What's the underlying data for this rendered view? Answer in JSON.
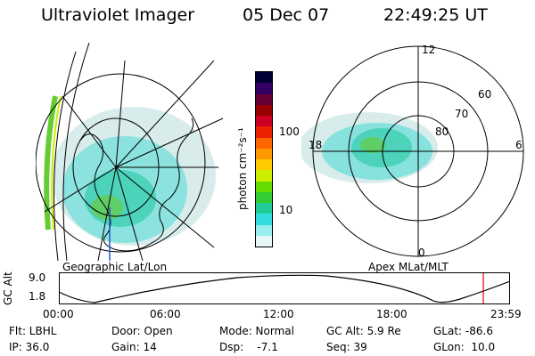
{
  "header": {
    "title": "Ultraviolet Imager",
    "date": "05 Dec 07",
    "time": "22:49:25 UT"
  },
  "colorbar": {
    "unit_label": "photon cm⁻²s⁻¹",
    "ticks": [
      "100",
      "10"
    ],
    "colors": [
      "#000033",
      "#330066",
      "#660033",
      "#990000",
      "#cc0022",
      "#ee2200",
      "#ff6600",
      "#ff9900",
      "#ffcc00",
      "#ccee00",
      "#66dd00",
      "#33cc33",
      "#22cc99",
      "#33dddd",
      "#99eeee",
      "#e8f6f6"
    ]
  },
  "left_panel": {
    "caption": "Geographic Lat/Lon"
  },
  "right_panel": {
    "caption": "Apex MLat/MLT",
    "mlt_labels": {
      "top": "12",
      "left": "18",
      "right": "6",
      "bottom": "0"
    },
    "lat_labels": [
      "60",
      "70",
      "80"
    ]
  },
  "timeline": {
    "ylabel": "GC Alt",
    "y_ticks": [
      "9.0",
      "1.8"
    ],
    "x_ticks": [
      "00:00",
      "06:00",
      "12:00",
      "18:00",
      "23:59"
    ],
    "marker_color": "#dd0000"
  },
  "info": {
    "row1": [
      "Flt: LBHL",
      "Door: Open",
      "Mode: Normal",
      "GC Alt: 5.9 Re",
      "GLat: -86.6"
    ],
    "row2": [
      "IP: 36.0",
      "Gain: 14",
      "Dsp:    -7.1",
      "Seq: 39",
      "GLon:  10.0"
    ]
  }
}
